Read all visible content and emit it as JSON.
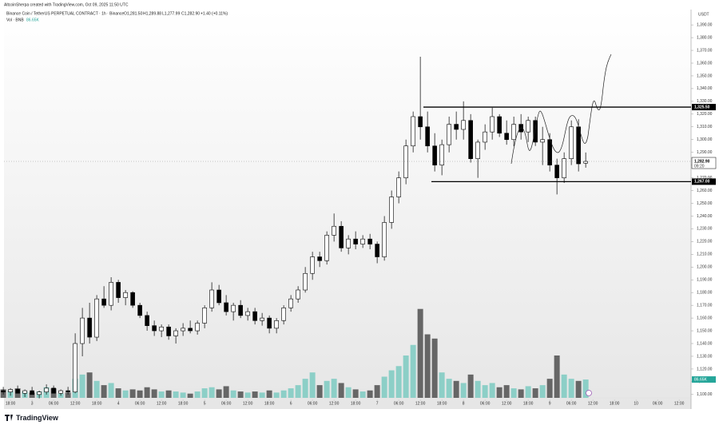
{
  "chart_data": {
    "type": "candlestick",
    "credit": "AltcoinSherpa created with TradingView.com, Oct 09, 2025 11:50 UTC",
    "title": "Binance Coin / TetherUS PERPETUAL CONTRACT · 1h · Binance",
    "ohlc_text": [
      "O1,281.50",
      "H1,289.88",
      "L1,277.99",
      "C1,282.90",
      "+1.40 (+0.11%)"
    ],
    "volume_title": "Vol · BNB",
    "volume_text": "86.65K",
    "currency": "USDT",
    "brand": "TradingView",
    "up_color": "#ffffff",
    "down_color": "#000000",
    "volume_up_color": "#8ccfc7",
    "volume_down_color": "#666666",
    "x": [
      -2,
      0,
      2,
      4,
      6,
      8,
      10,
      12,
      14,
      16,
      18,
      20,
      22,
      24,
      26,
      28,
      30,
      32,
      34,
      36,
      38,
      40,
      42,
      44,
      46,
      48,
      50,
      52,
      54,
      56,
      58,
      60,
      62,
      64,
      66,
      68,
      70,
      72,
      74,
      76,
      78,
      80,
      82,
      84,
      86,
      88,
      90,
      92,
      94,
      96,
      98,
      100,
      102,
      104,
      106,
      108,
      110,
      112,
      114,
      116,
      118,
      120,
      122,
      124,
      126,
      128,
      130,
      132,
      134,
      136,
      138,
      140,
      142,
      144,
      146,
      148,
      150,
      152,
      154,
      156,
      158,
      160
    ],
    "open": [
      1103,
      1102,
      1104,
      1101,
      1103,
      1100,
      1102,
      1105,
      1101,
      1103,
      1102,
      1140,
      1160,
      1145,
      1175,
      1170,
      1188,
      1176,
      1180,
      1170,
      1162,
      1154,
      1150,
      1153,
      1146,
      1150,
      1152,
      1150,
      1156,
      1168,
      1182,
      1172,
      1165,
      1170,
      1162,
      1165,
      1158,
      1160,
      1152,
      1158,
      1168,
      1175,
      1182,
      1195,
      1208,
      1205,
      1225,
      1232,
      1215,
      1222,
      1218,
      1222,
      1218,
      1208,
      1235,
      1255,
      1270,
      1295,
      1318,
      1310,
      1295,
      1280,
      1296,
      1312,
      1308,
      1315,
      1285,
      1298,
      1306,
      1318,
      1305,
      1300,
      1312,
      1306,
      1315,
      1298,
      1300,
      1280,
      1270,
      1285,
      1310,
      1281.5
    ],
    "high": [
      1106,
      1105,
      1107,
      1104,
      1106,
      1103,
      1108,
      1107,
      1104,
      1106,
      1148,
      1168,
      1172,
      1178,
      1185,
      1192,
      1190,
      1182,
      1181,
      1172,
      1165,
      1158,
      1155,
      1155,
      1152,
      1156,
      1158,
      1158,
      1170,
      1188,
      1186,
      1178,
      1172,
      1174,
      1168,
      1168,
      1164,
      1162,
      1160,
      1170,
      1178,
      1185,
      1200,
      1212,
      1212,
      1228,
      1242,
      1236,
      1225,
      1228,
      1225,
      1226,
      1220,
      1240,
      1260,
      1275,
      1300,
      1322,
      1365,
      1322,
      1305,
      1300,
      1318,
      1322,
      1330,
      1320,
      1300,
      1312,
      1325,
      1320,
      1315,
      1318,
      1320,
      1318,
      1318,
      1310,
      1305,
      1285,
      1290,
      1315,
      1316,
      1289.88
    ],
    "low": [
      1100,
      1099,
      1101,
      1098,
      1100,
      1097,
      1100,
      1101,
      1099,
      1100,
      1101,
      1130,
      1140,
      1142,
      1168,
      1166,
      1172,
      1170,
      1168,
      1160,
      1150,
      1146,
      1145,
      1143,
      1140,
      1146,
      1148,
      1147,
      1152,
      1165,
      1170,
      1162,
      1158,
      1160,
      1158,
      1155,
      1154,
      1148,
      1148,
      1155,
      1165,
      1172,
      1180,
      1190,
      1200,
      1202,
      1220,
      1212,
      1210,
      1214,
      1215,
      1214,
      1203,
      1205,
      1230,
      1250,
      1265,
      1290,
      1300,
      1290,
      1275,
      1272,
      1290,
      1300,
      1300,
      1282,
      1270,
      1292,
      1300,
      1302,
      1296,
      1295,
      1300,
      1298,
      1295,
      1280,
      1275,
      1257,
      1266,
      1280,
      1275,
      1277.99
    ],
    "close": [
      1102,
      1104,
      1101,
      1103,
      1100,
      1102,
      1105,
      1101,
      1103,
      1102,
      1140,
      1160,
      1145,
      1175,
      1170,
      1188,
      1176,
      1180,
      1170,
      1162,
      1154,
      1150,
      1153,
      1146,
      1150,
      1152,
      1150,
      1156,
      1168,
      1182,
      1172,
      1165,
      1170,
      1162,
      1165,
      1158,
      1160,
      1152,
      1158,
      1168,
      1175,
      1182,
      1195,
      1208,
      1205,
      1225,
      1232,
      1215,
      1222,
      1218,
      1222,
      1218,
      1208,
      1235,
      1255,
      1270,
      1295,
      1318,
      1310,
      1295,
      1280,
      1296,
      1312,
      1308,
      1315,
      1285,
      1298,
      1306,
      1318,
      1305,
      1300,
      1312,
      1306,
      1315,
      1298,
      1300,
      1280,
      1270,
      1285,
      1310,
      1281,
      1282.9
    ],
    "volume": [
      40,
      35,
      45,
      30,
      25,
      30,
      50,
      45,
      20,
      25,
      90,
      110,
      120,
      80,
      60,
      70,
      45,
      35,
      40,
      35,
      50,
      40,
      30,
      35,
      30,
      25,
      20,
      30,
      45,
      50,
      40,
      55,
      35,
      30,
      25,
      30,
      25,
      35,
      25,
      35,
      45,
      60,
      90,
      120,
      60,
      80,
      90,
      70,
      50,
      40,
      30,
      35,
      60,
      100,
      130,
      150,
      200,
      250,
      420,
      300,
      280,
      120,
      90,
      80,
      70,
      110,
      80,
      60,
      70,
      50,
      60,
      45,
      40,
      55,
      45,
      60,
      90,
      200,
      110,
      90,
      80,
      86.65
    ],
    "levels": [
      {
        "value": 1325.5,
        "label": "1,325.50"
      },
      {
        "value": 1267,
        "label": "1,267.00"
      }
    ],
    "last_price_label": "1,282.90",
    "countdown": "09:20",
    "xlim": [
      -1.8,
      189.3
    ],
    "ylim": [
      1093,
      1402
    ],
    "yticks": [
      {
        "value": 1100,
        "label": "1,100.00"
      },
      {
        "value": 1110,
        "label": "1,110.00"
      },
      {
        "value": 1120,
        "label": "1,120.00"
      },
      {
        "value": 1130,
        "label": "1,130.00"
      },
      {
        "value": 1140,
        "label": "1,140.00"
      },
      {
        "value": 1150,
        "label": "1,150.00"
      },
      {
        "value": 1160,
        "label": "1,160.00"
      },
      {
        "value": 1170,
        "label": "1,170.00"
      },
      {
        "value": 1180,
        "label": "1,180.00"
      },
      {
        "value": 1190,
        "label": "1,190.00"
      },
      {
        "value": 1200,
        "label": "1,200.00"
      },
      {
        "value": 1210,
        "label": "1,210.00"
      },
      {
        "value": 1220,
        "label": "1,220.00"
      },
      {
        "value": 1230,
        "label": "1,230.00"
      },
      {
        "value": 1240,
        "label": "1,240.00"
      },
      {
        "value": 1250,
        "label": "1,250.00"
      },
      {
        "value": 1260,
        "label": "1,260.00"
      },
      {
        "value": 1270,
        "label": "1,270.00"
      },
      {
        "value": 1280,
        "label": "1,280.00"
      },
      {
        "value": 1290,
        "label": "1,290.00"
      },
      {
        "value": 1300,
        "label": "1,300.00"
      },
      {
        "value": 1310,
        "label": "1,310.00"
      },
      {
        "value": 1320,
        "label": "1,320.00"
      },
      {
        "value": 1330,
        "label": "1,330.00"
      },
      {
        "value": 1340,
        "label": "1,340.00"
      },
      {
        "value": 1350,
        "label": "1,350.00"
      },
      {
        "value": 1360,
        "label": "1,360.00"
      },
      {
        "value": 1370,
        "label": "1,370.00"
      },
      {
        "value": 1380,
        "label": "1,380.00"
      },
      {
        "value": 1390,
        "label": "1,390.00"
      }
    ],
    "xticks": [
      {
        "value": 0,
        "label": "18:00"
      },
      {
        "value": 6,
        "label": "3"
      },
      {
        "value": 12,
        "label": "06:00"
      },
      {
        "value": 18,
        "label": "12:00"
      },
      {
        "value": 24,
        "label": "18:00"
      },
      {
        "value": 30,
        "label": "4"
      },
      {
        "value": 36,
        "label": "06:00"
      },
      {
        "value": 42,
        "label": "12:00"
      },
      {
        "value": 48,
        "label": "18:00"
      },
      {
        "value": 54,
        "label": "5"
      },
      {
        "value": 60,
        "label": "06:00"
      },
      {
        "value": 66,
        "label": "12:00"
      },
      {
        "value": 72,
        "label": "18:00"
      },
      {
        "value": 78,
        "label": "6"
      },
      {
        "value": 84,
        "label": "06:00"
      },
      {
        "value": 90,
        "label": "12:00"
      },
      {
        "value": 96,
        "label": "18:00"
      },
      {
        "value": 102,
        "label": "7"
      },
      {
        "value": 108,
        "label": "06:00"
      },
      {
        "value": 114,
        "label": "12:00"
      },
      {
        "value": 120,
        "label": "18:00"
      },
      {
        "value": 126,
        "label": "8"
      },
      {
        "value": 132,
        "label": "06:00"
      },
      {
        "value": 138,
        "label": "12:00"
      },
      {
        "value": 144,
        "label": "18:00"
      },
      {
        "value": 150,
        "label": "9"
      },
      {
        "value": 156,
        "label": "06:00"
      },
      {
        "value": 162,
        "label": "12:00"
      },
      {
        "value": 168,
        "label": "18:00"
      },
      {
        "value": 174,
        "label": "10"
      },
      {
        "value": 180,
        "label": "06:00"
      },
      {
        "value": 186,
        "label": "12:00"
      }
    ]
  }
}
